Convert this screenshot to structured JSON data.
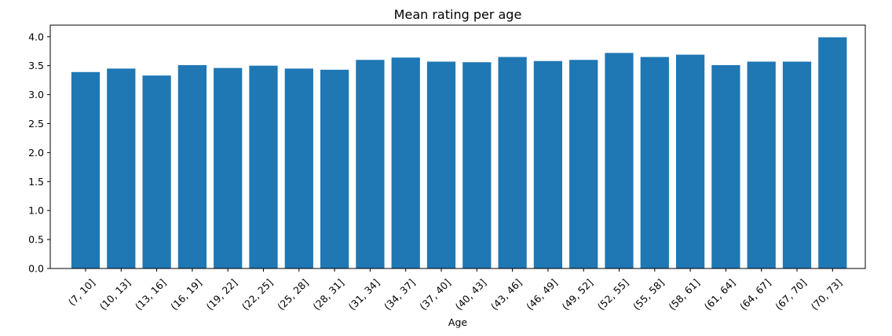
{
  "chart_data": {
    "type": "bar",
    "title": "Mean rating per age",
    "xlabel": "Age",
    "ylabel": "",
    "ylim": [
      0,
      4.2
    ],
    "yticks": [
      0.0,
      0.5,
      1.0,
      1.5,
      2.0,
      2.5,
      3.0,
      3.5,
      4.0
    ],
    "ytick_labels": [
      "0.0",
      "0.5",
      "1.0",
      "1.5",
      "2.0",
      "2.5",
      "3.0",
      "3.5",
      "4.0"
    ],
    "grid": false,
    "bar_color": "#1f77b4",
    "categories": [
      "(7, 10]",
      "(10, 13]",
      "(13, 16]",
      "(16, 19]",
      "(19, 22]",
      "(22, 25]",
      "(25, 28]",
      "(28, 31]",
      "(31, 34]",
      "(34, 37]",
      "(37, 40]",
      "(40, 43]",
      "(43, 46]",
      "(46, 49]",
      "(49, 52]",
      "(52, 55]",
      "(55, 58]",
      "(58, 61]",
      "(61, 64]",
      "(64, 67]",
      "(67, 70]",
      "(70, 73]"
    ],
    "values": [
      3.39,
      3.45,
      3.33,
      3.51,
      3.46,
      3.5,
      3.45,
      3.43,
      3.6,
      3.64,
      3.57,
      3.56,
      3.65,
      3.58,
      3.6,
      3.72,
      3.65,
      3.69,
      3.51,
      3.57,
      3.57,
      3.99
    ]
  }
}
